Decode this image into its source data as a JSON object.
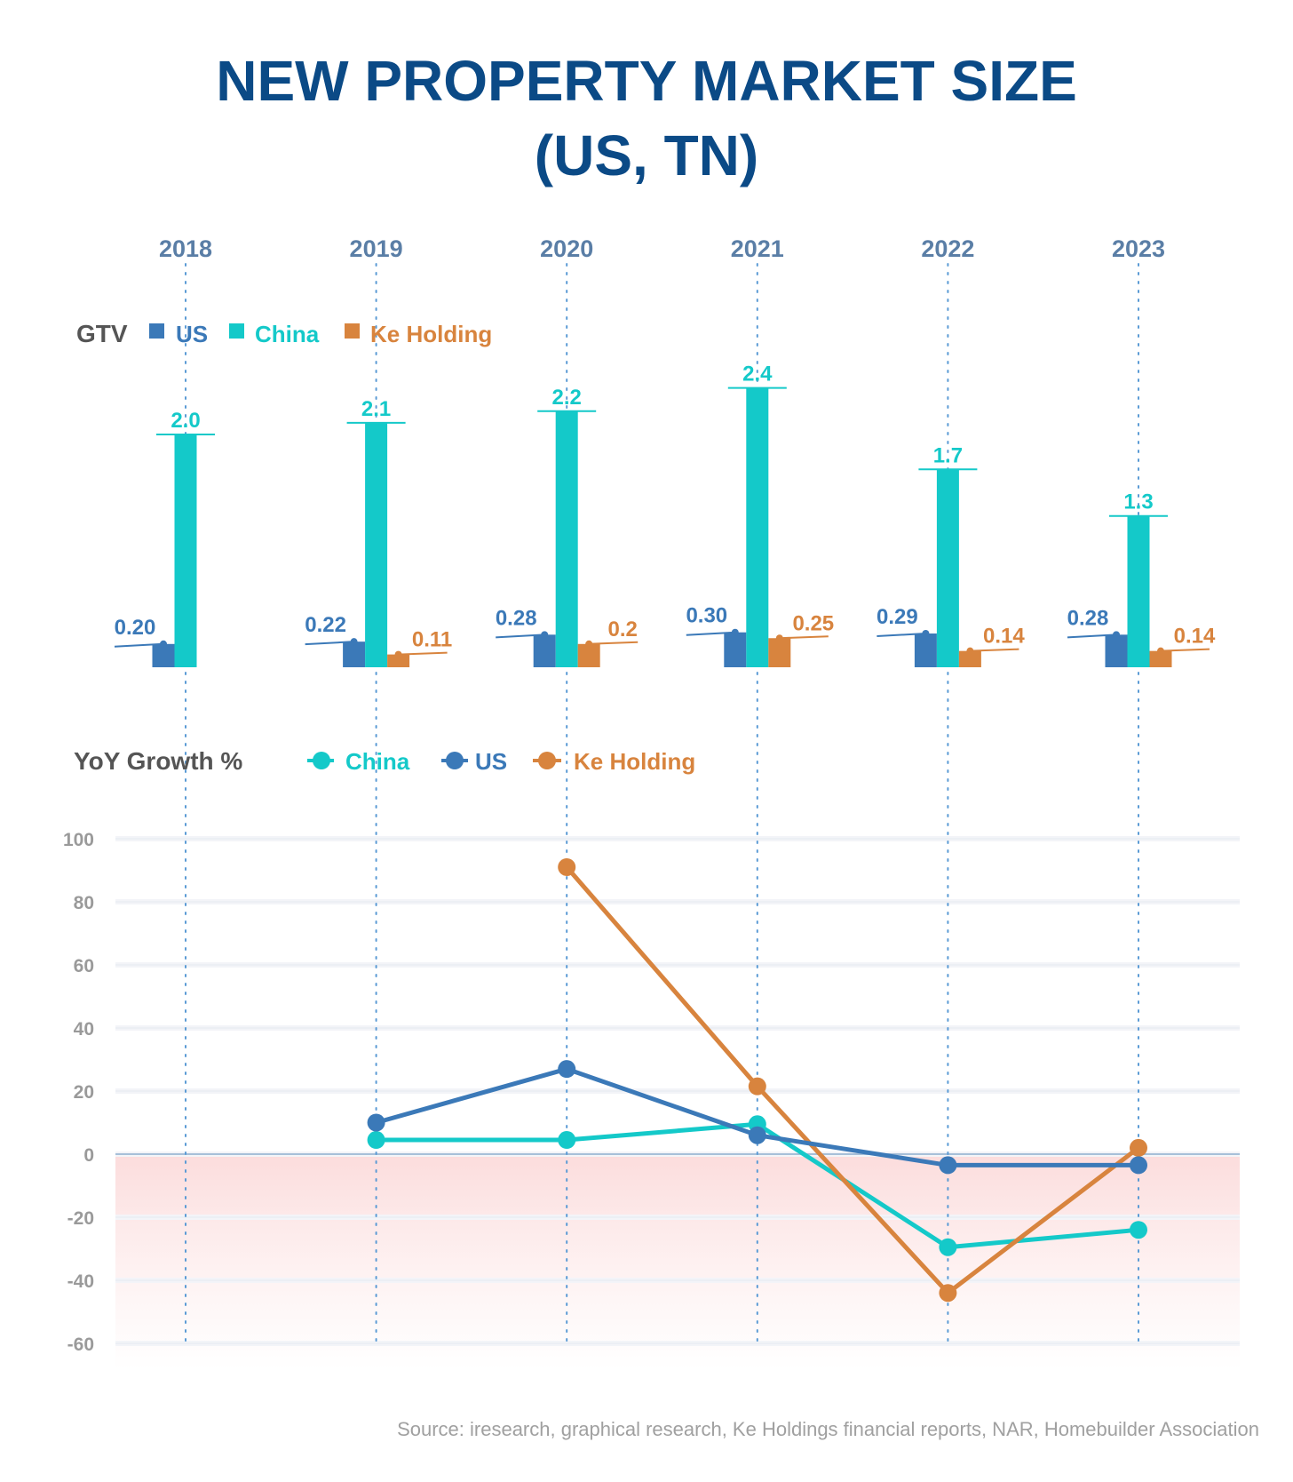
{
  "title_line1": "NEW PROPERTY MARKET SIZE",
  "title_line2": "(US, TN)",
  "colors": {
    "us": "#3b79b8",
    "china": "#14c9c9",
    "ke": "#d8843e",
    "title": "#0b4a86"
  },
  "chart_data": [
    {
      "type": "bar",
      "title": "GTV",
      "categories": [
        "2018",
        "2019",
        "2020",
        "2021",
        "2022",
        "2023"
      ],
      "series": [
        {
          "name": "US",
          "key": "us",
          "values": [
            0.2,
            0.22,
            0.28,
            0.3,
            0.29,
            0.28
          ],
          "labels": [
            "0.20",
            "0.22",
            "0.28",
            "0.30",
            "0.29",
            "0.28"
          ]
        },
        {
          "name": "China",
          "key": "china",
          "values": [
            2.0,
            2.1,
            2.2,
            2.4,
            1.7,
            1.3
          ],
          "labels": [
            "2.0",
            "2.1",
            "2.2",
            "2.4",
            "1.7",
            "1.3"
          ]
        },
        {
          "name": "Ke Holding",
          "key": "ke",
          "values": [
            null,
            0.11,
            0.2,
            0.25,
            0.14,
            0.14
          ],
          "labels": [
            null,
            "0.11",
            "0.2",
            "0.25",
            "0.14",
            "0.14"
          ]
        }
      ]
    },
    {
      "type": "line",
      "title": "YoY Growth %",
      "categories": [
        "2018",
        "2019",
        "2020",
        "2021",
        "2022",
        "2023"
      ],
      "ylim": [
        -60,
        100
      ],
      "yticks": [
        100,
        80,
        60,
        40,
        20,
        0,
        -20,
        -40,
        -60
      ],
      "series": [
        {
          "name": "China",
          "key": "china",
          "values": [
            null,
            4.5,
            4.5,
            9.5,
            -29.5,
            -24
          ]
        },
        {
          "name": "US",
          "key": "us",
          "values": [
            null,
            10,
            27,
            6,
            -3.5,
            -3.5
          ]
        },
        {
          "name": "Ke Holding",
          "key": "ke",
          "values": [
            null,
            null,
            91,
            21.5,
            -44,
            2
          ]
        }
      ]
    }
  ],
  "source": "Source: iresearch, graphical research, Ke Holdings financial reports, NAR, Homebuilder Association"
}
